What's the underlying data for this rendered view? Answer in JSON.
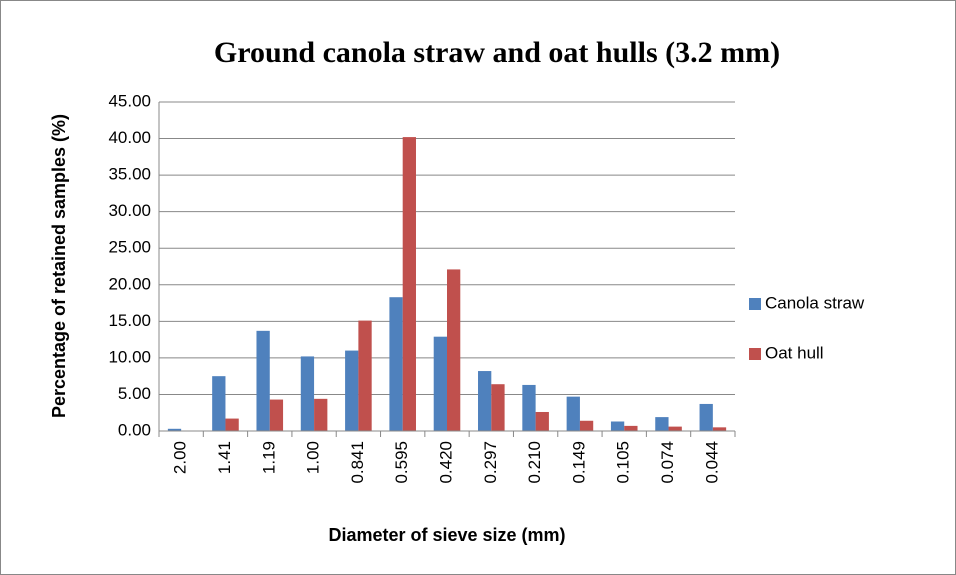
{
  "chart_data": {
    "type": "bar",
    "title": "Ground canola straw and oat hulls (3.2 mm)",
    "x_label": "Diameter of sieve size (mm)",
    "y_label": "Percentage of retained samples (%)",
    "categories": [
      "2.00",
      "1.41",
      "1.19",
      "1.00",
      "0.841",
      "0.595",
      "0.420",
      "0.297",
      "0.210",
      "0.149",
      "0.105",
      "0.074",
      "0.044"
    ],
    "series": [
      {
        "name": "Canola straw",
        "color": "#4f81bd",
        "values": [
          0.3,
          7.5,
          13.7,
          10.2,
          11.0,
          18.3,
          12.9,
          8.2,
          6.3,
          4.7,
          1.3,
          1.9,
          3.7
        ]
      },
      {
        "name": "Oat hull",
        "color": "#c0504d",
        "values": [
          0,
          1.7,
          4.3,
          4.4,
          15.1,
          40.2,
          22.1,
          6.4,
          2.6,
          1.4,
          0.7,
          0.6,
          0.5
        ]
      }
    ],
    "ylim": [
      0,
      45
    ],
    "yticks": [
      {
        "value": 0,
        "label": "0.00"
      },
      {
        "value": 5,
        "label": "5.00"
      },
      {
        "value": 10,
        "label": "10.00"
      },
      {
        "value": 15,
        "label": "15.00"
      },
      {
        "value": 20,
        "label": "20.00"
      },
      {
        "value": 25,
        "label": "25.00"
      },
      {
        "value": 30,
        "label": "30.00"
      },
      {
        "value": 35,
        "label": "35.00"
      },
      {
        "value": 40,
        "label": "40.00"
      },
      {
        "value": 45,
        "label": "45.00"
      }
    ],
    "grid": true,
    "legend": "right"
  }
}
